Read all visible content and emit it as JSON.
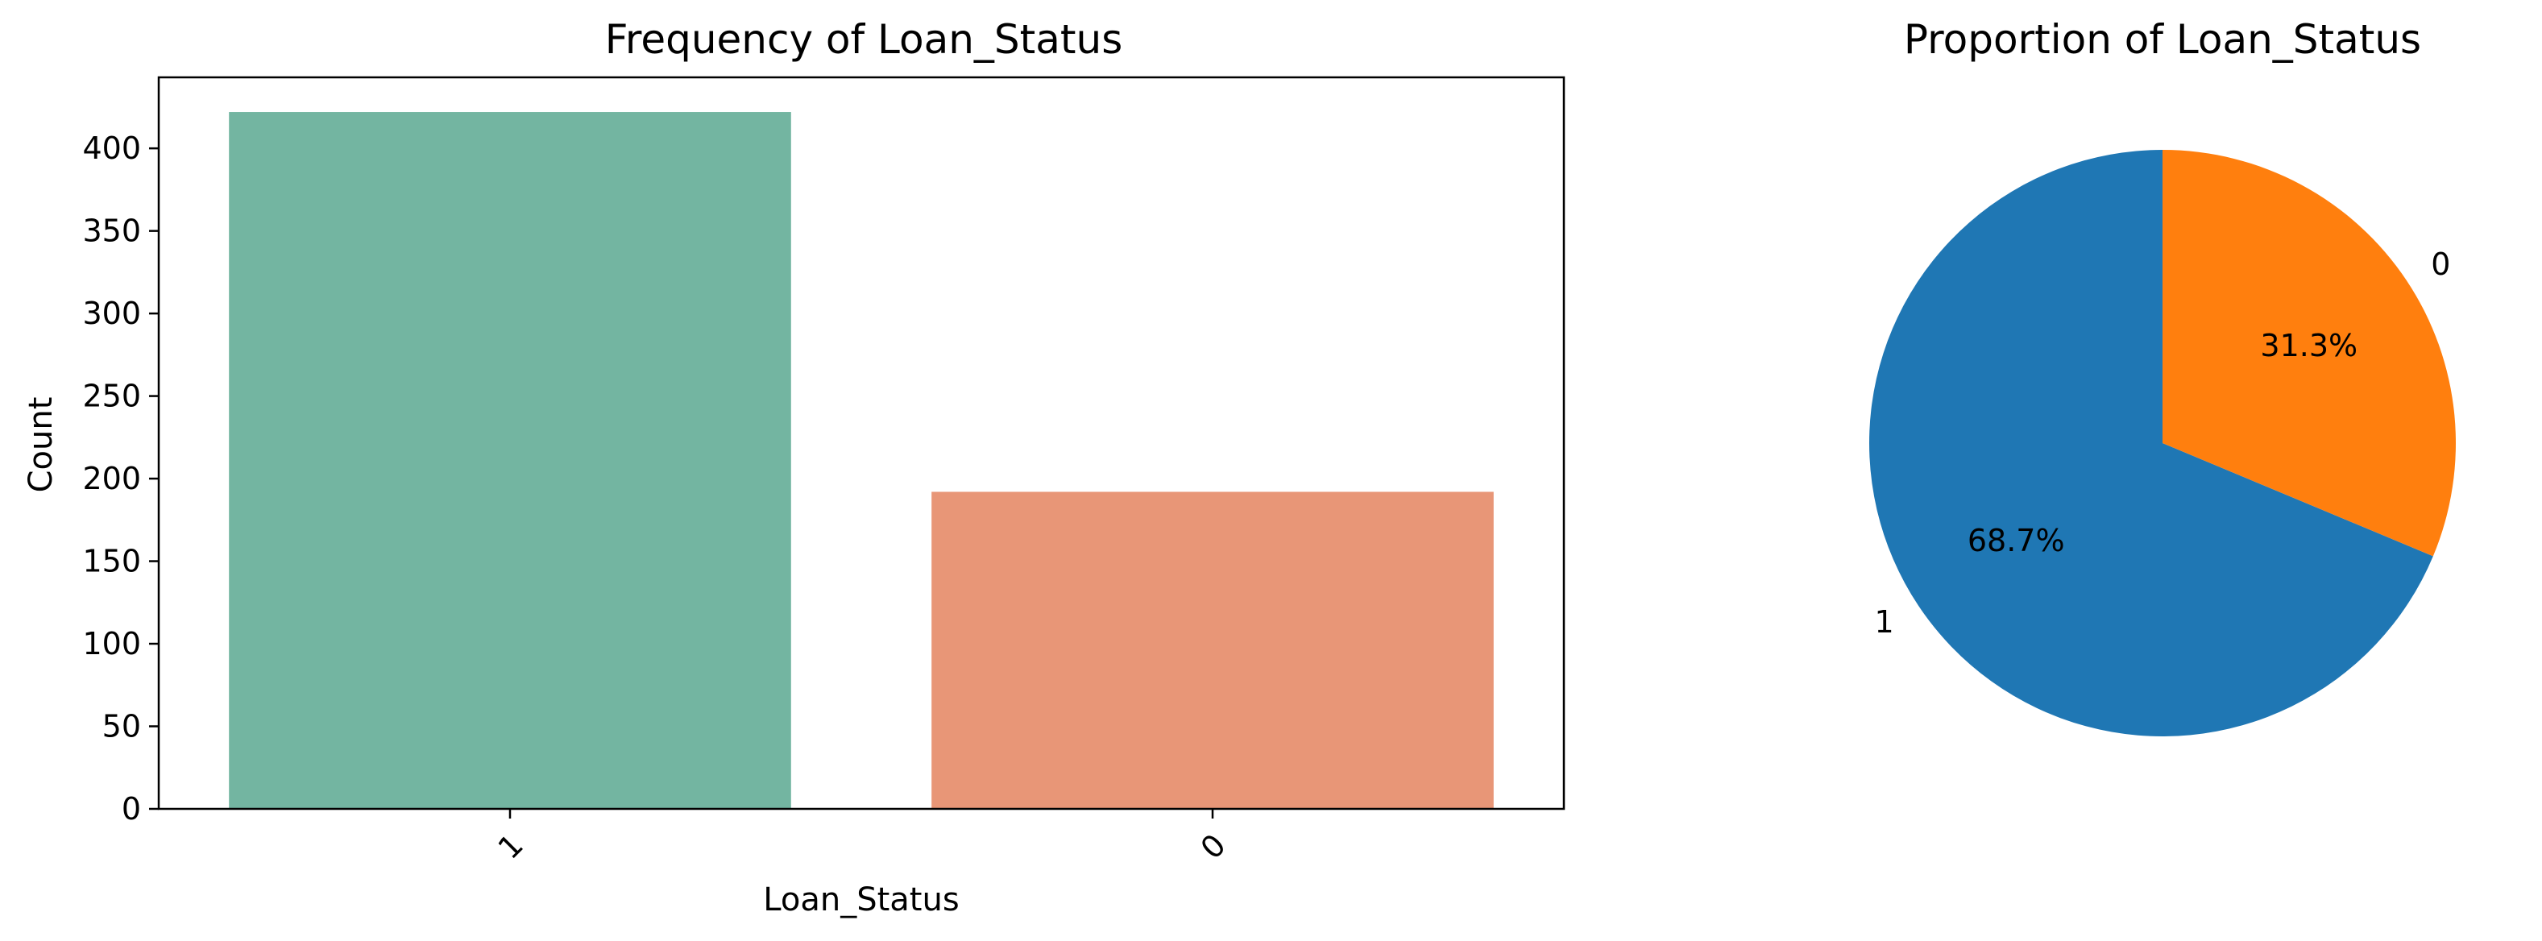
{
  "chart_data": [
    {
      "type": "bar",
      "title": "Frequency of Loan_Status",
      "xlabel": "Loan_Status",
      "ylabel": "Count",
      "categories": [
        "1",
        "0"
      ],
      "values": [
        422,
        192
      ],
      "colors": [
        "#73b5a1",
        "#e89677"
      ],
      "ylim": [
        0,
        443
      ],
      "yticks": [
        "0",
        "50",
        "100",
        "150",
        "200",
        "250",
        "300",
        "350",
        "400"
      ],
      "grid": false,
      "legend": "none"
    },
    {
      "type": "pie",
      "title": "Proportion of Loan_Status",
      "labels": [
        "1",
        "0"
      ],
      "values": [
        68.7,
        31.3
      ],
      "percent_labels": [
        "68.7%",
        "31.3%"
      ],
      "colors": [
        "#1f77b4",
        "#ff7f0e"
      ],
      "startangle": 90
    }
  ]
}
